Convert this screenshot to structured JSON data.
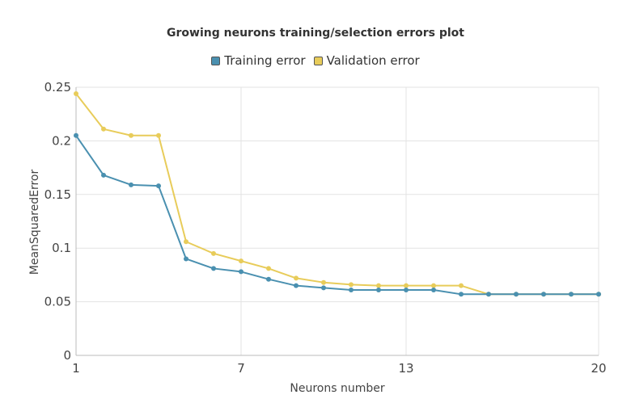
{
  "chart_data": {
    "type": "line",
    "title": "Growing neurons training/selection errors plot",
    "xlabel": "Neurons number",
    "ylabel": "MeanSquaredError",
    "xlim": [
      1,
      20
    ],
    "ylim": [
      0,
      0.25
    ],
    "x_ticks": [
      "1",
      "7",
      "13",
      "20"
    ],
    "y_ticks": [
      "0",
      "0.05",
      "0.1",
      "0.15",
      "0.2",
      "0.25"
    ],
    "grid": true,
    "legend_position": "top",
    "x": [
      1,
      2,
      3,
      4,
      5,
      6,
      7,
      8,
      9,
      10,
      11,
      12,
      13,
      14,
      15,
      16,
      17,
      18,
      19,
      20
    ],
    "series": [
      {
        "name": "Training error",
        "color": "#4a90b0",
        "values": [
          0.205,
          0.168,
          0.159,
          0.158,
          0.09,
          0.081,
          0.078,
          0.071,
          0.065,
          0.063,
          0.061,
          0.061,
          0.061,
          0.061,
          0.057,
          0.057,
          0.057,
          0.057,
          0.057,
          0.057
        ]
      },
      {
        "name": "Validation error",
        "color": "#e8cc5a",
        "values": [
          0.244,
          0.211,
          0.205,
          0.205,
          0.106,
          0.095,
          0.088,
          0.081,
          0.072,
          0.068,
          0.066,
          0.065,
          0.065,
          0.065,
          0.065,
          0.057,
          0.057,
          0.057,
          0.057,
          0.057
        ]
      }
    ]
  }
}
